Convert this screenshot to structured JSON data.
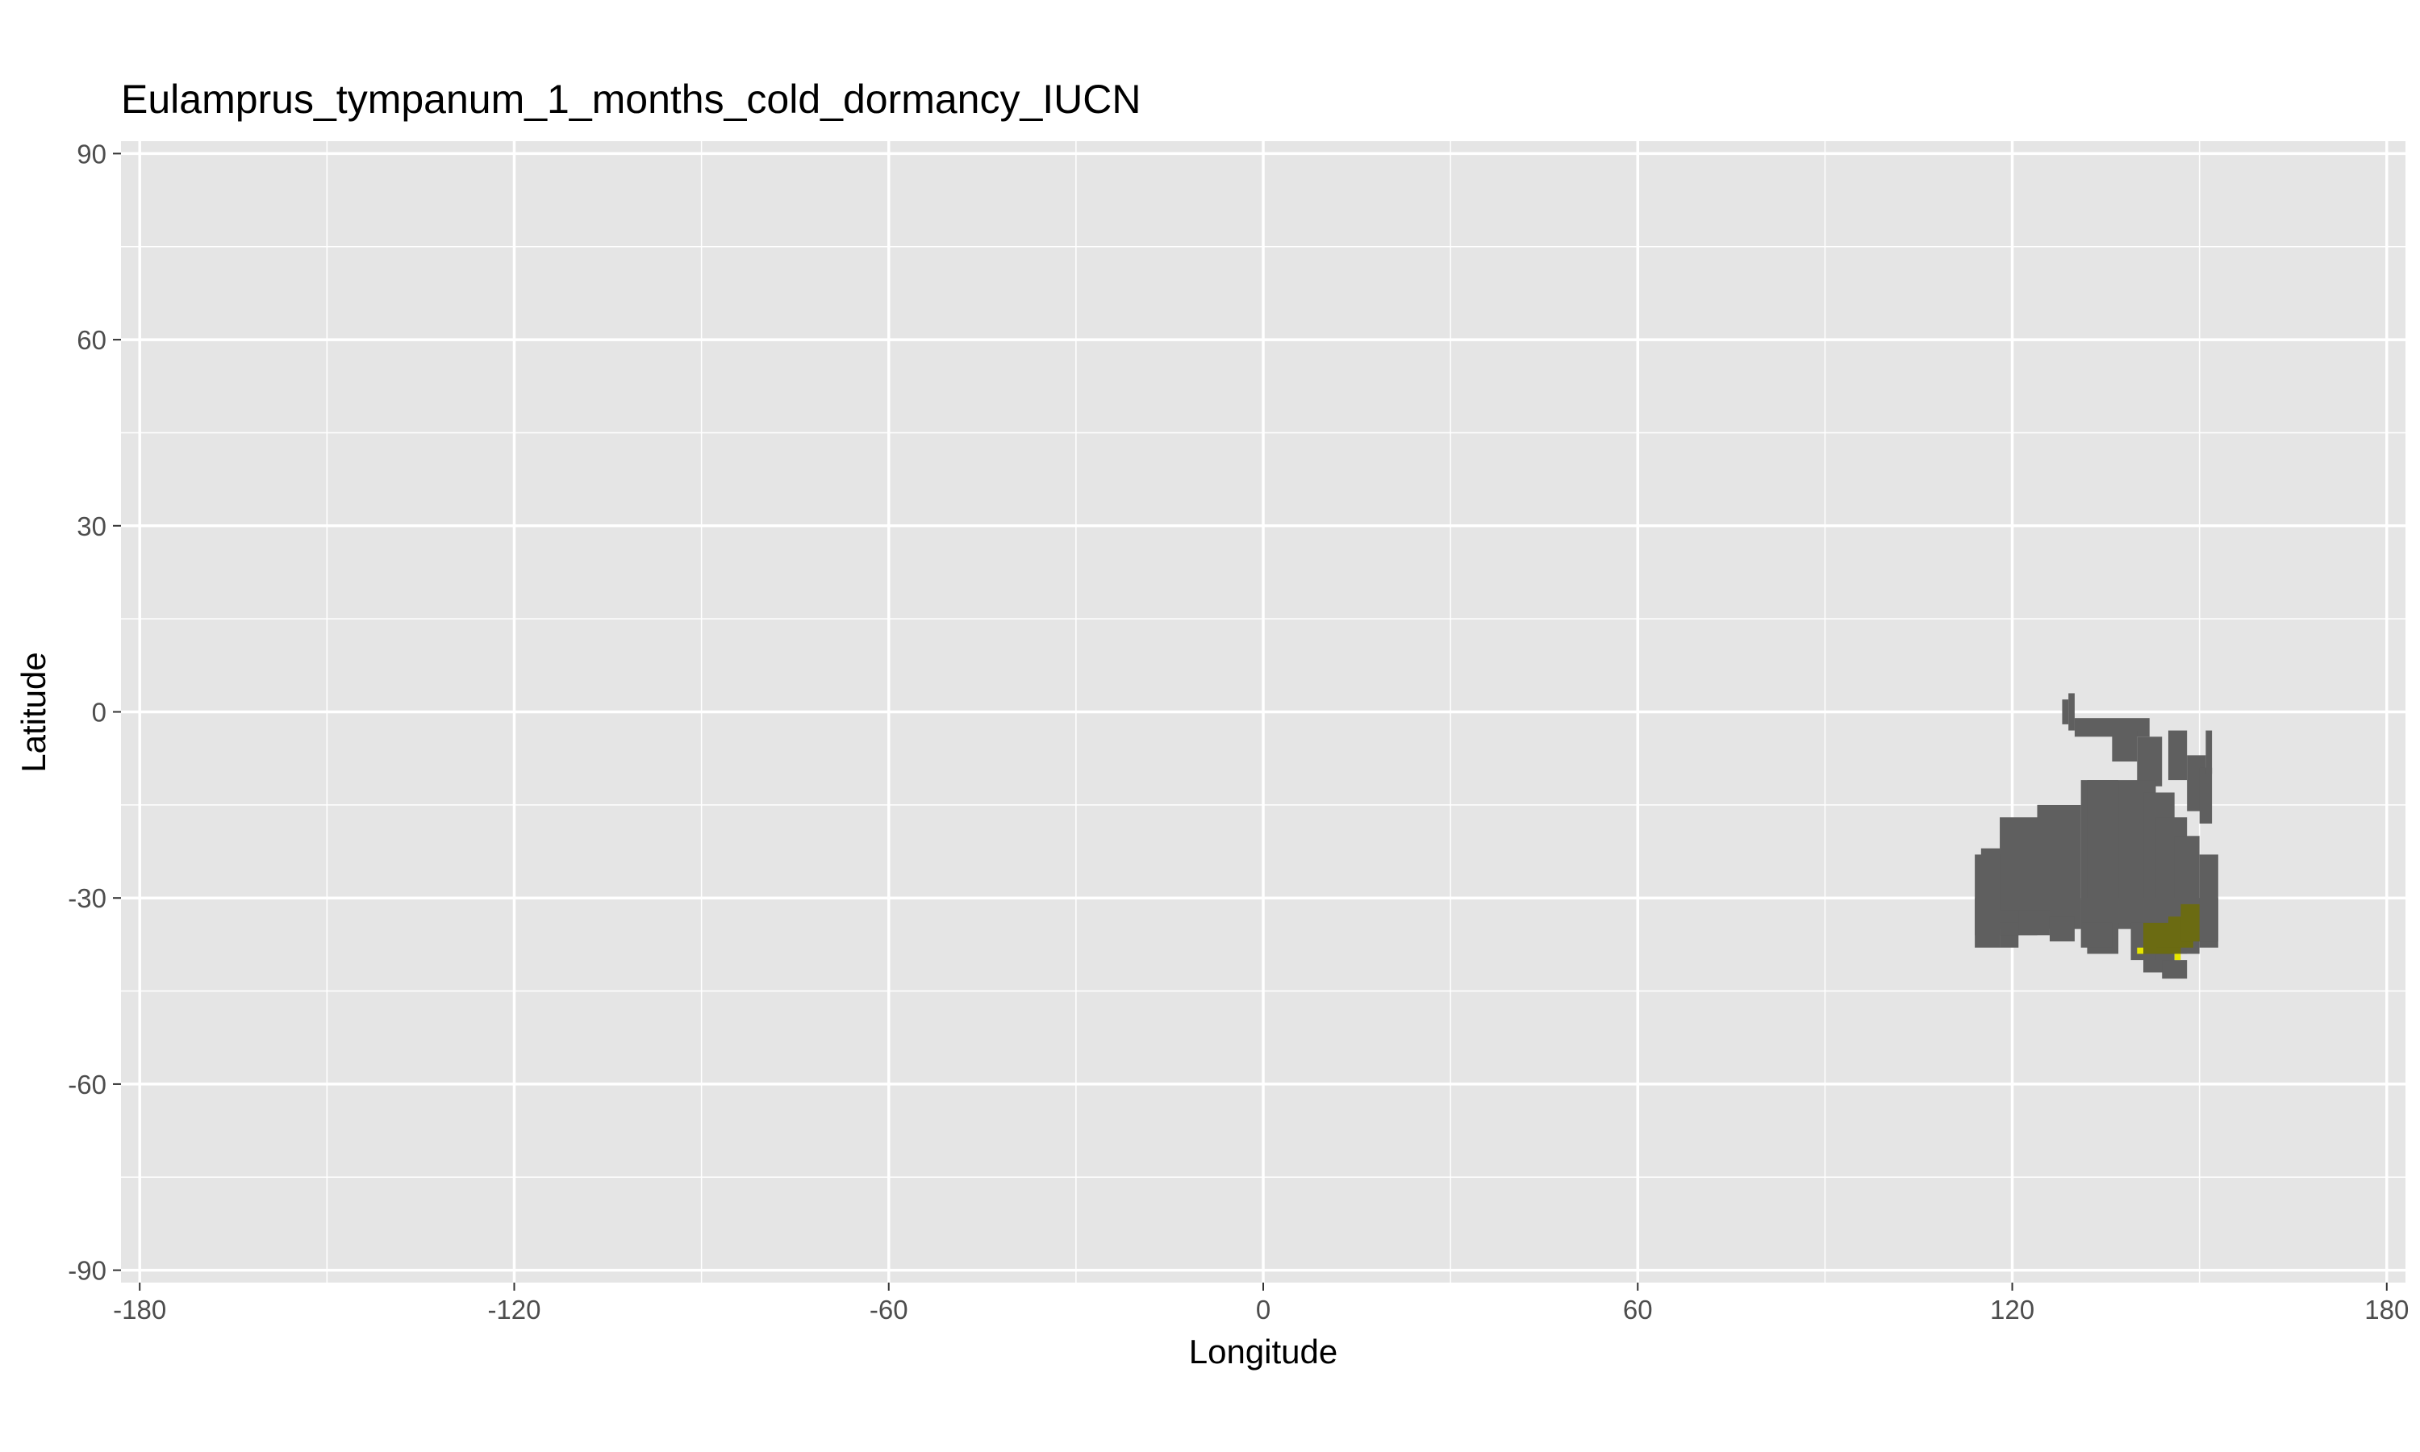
{
  "chart_data": {
    "type": "heatmap",
    "title": "Eulamprus_tympanum_1_months_cold_dormancy_IUCN",
    "xlabel": "Longitude",
    "ylabel": "Latitude",
    "xlim": [
      -183,
      183
    ],
    "ylim": [
      -92,
      92
    ],
    "x_ticks": [
      -180,
      -120,
      -60,
      0,
      60,
      120,
      180
    ],
    "y_ticks": [
      90,
      60,
      30,
      0,
      -30,
      -60,
      -90
    ],
    "grid": true,
    "legend": "none",
    "colors": {
      "panel": "#e5e5e5",
      "grid_major": "#ffffff",
      "range": "#5f5f5f",
      "dormancy_suitable": "#6b6b12",
      "dormancy_edge": "#e6e600"
    },
    "series": [
      {
        "id": "range",
        "cells": [
          [
            128,
            2,
            1,
            -4
          ],
          [
            129,
            3,
            1,
            -6
          ],
          [
            130,
            -1,
            12,
            -3
          ],
          [
            136,
            -3,
            4,
            -5
          ],
          [
            140,
            -4,
            4,
            -8
          ],
          [
            145,
            -3,
            3,
            -8
          ],
          [
            148,
            -7,
            3,
            -9
          ],
          [
            150,
            -9,
            2,
            -9
          ],
          [
            151,
            -3,
            1,
            -7
          ],
          [
            115,
            -22,
            5,
            -12
          ],
          [
            118,
            -17,
            10,
            -18
          ],
          [
            124,
            -15,
            7,
            -20
          ],
          [
            131,
            -11,
            12,
            -24
          ],
          [
            132,
            -11,
            5,
            -28
          ],
          [
            141,
            -13,
            5,
            -29
          ],
          [
            143,
            -17,
            5,
            -22
          ],
          [
            146,
            -20,
            4,
            -19
          ],
          [
            150,
            -23,
            3,
            -15
          ],
          [
            114,
            -23,
            4,
            -13
          ],
          [
            114,
            -30,
            4,
            -8
          ],
          [
            118,
            -32,
            3,
            -6
          ],
          [
            118,
            -34,
            6,
            -2
          ],
          [
            121,
            -32,
            5,
            -4
          ],
          [
            126,
            -33,
            4,
            -4
          ],
          [
            131,
            -30,
            12,
            -4
          ],
          [
            131,
            -34,
            5,
            -4
          ],
          [
            139,
            -34,
            4,
            -6
          ],
          [
            142,
            -30,
            11,
            -7
          ],
          [
            144,
            -40,
            4,
            -3
          ]
        ]
      },
      {
        "id": "dormancy_suitable",
        "cells": [
          [
            141,
            -34,
            6,
            -5
          ],
          [
            145,
            -33,
            4,
            -5
          ],
          [
            147,
            -31,
            3,
            -6
          ],
          [
            143,
            -38,
            4,
            -1
          ]
        ]
      },
      {
        "id": "dormancy_edge",
        "cells": [
          [
            140,
            -38,
            1,
            -1
          ],
          [
            146,
            -39,
            1,
            -1
          ]
        ]
      }
    ]
  }
}
